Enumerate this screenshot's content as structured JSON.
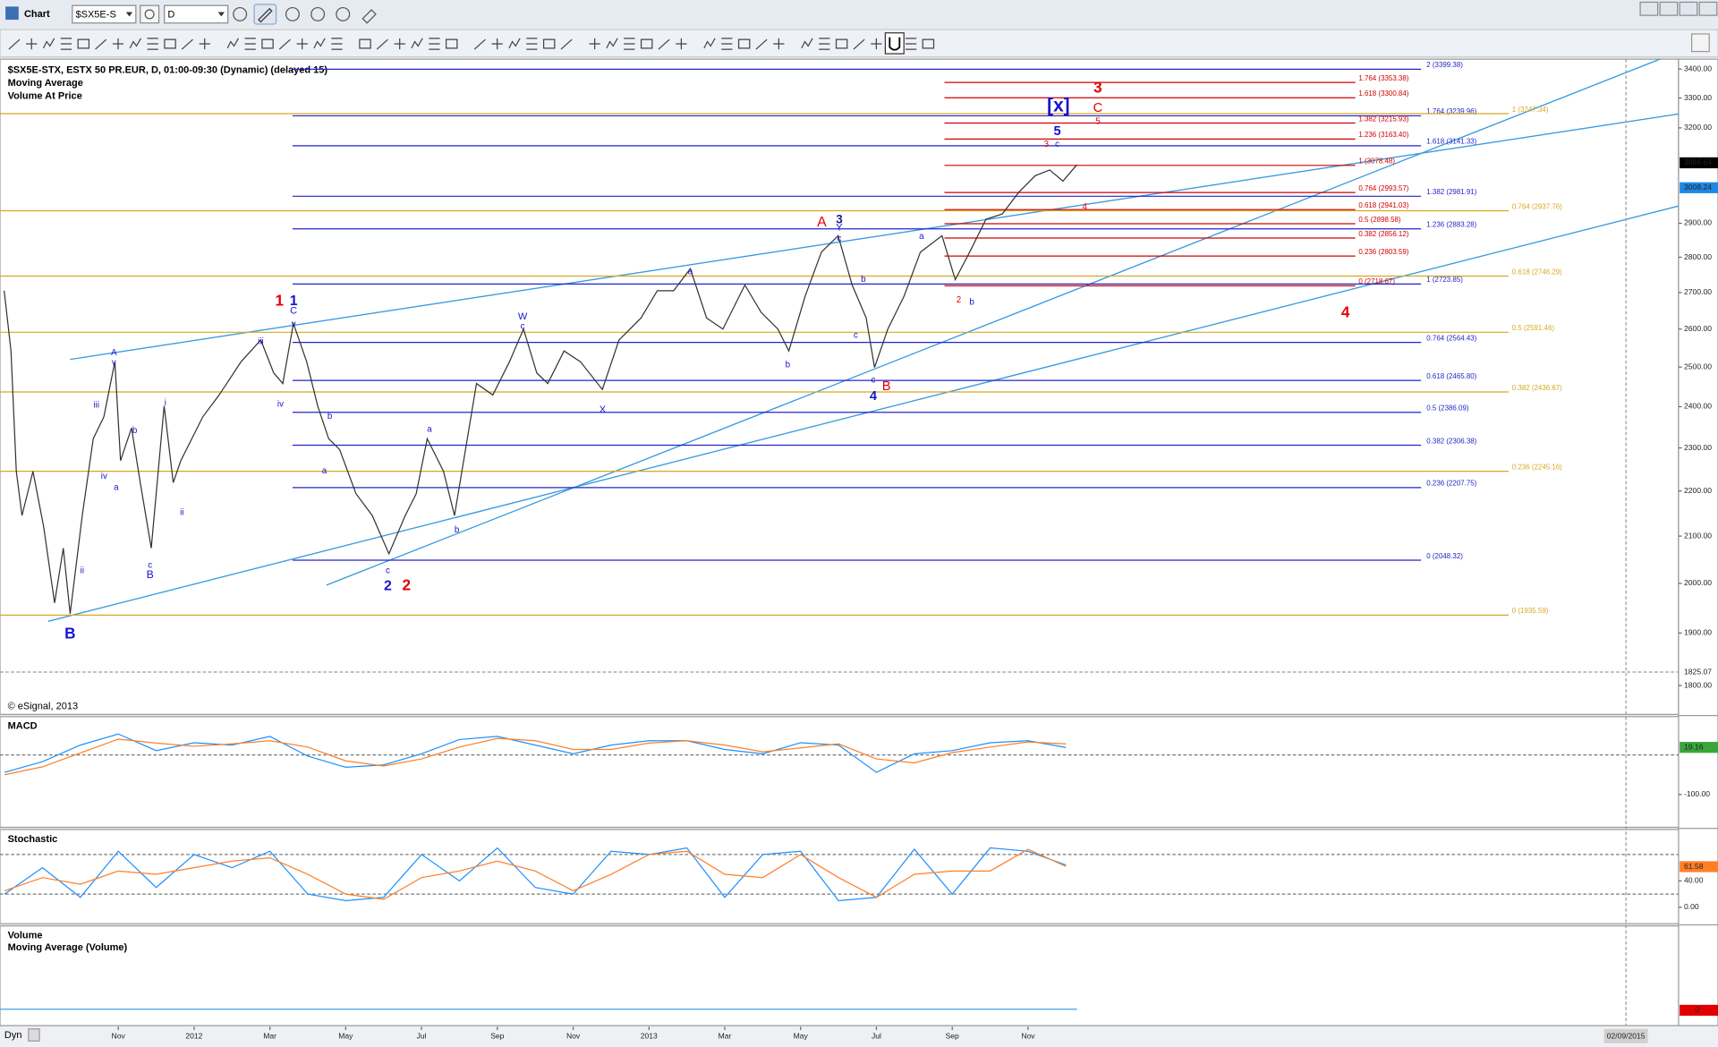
{
  "window": {
    "title": "Chart",
    "symbol": "$SX5E-S",
    "interval": "D",
    "cursor_date": "02/09/2015",
    "status": "Dyn"
  },
  "chart_data": [
    {
      "type": "line",
      "title": "$SX5E-STX, ESTX 50 PR.EUR, D, 01:00-09:30 (Dynamic) (delayed 15)",
      "studies": [
        "Moving Average",
        "Volume At Price"
      ],
      "copyright": "© eSignal, 2013",
      "log": true,
      "color": "#333333",
      "x": [
        -2.01,
        -1.83,
        -1.69,
        -1.54,
        -1.25,
        -0.97,
        -0.68,
        -0.45,
        -0.27,
        0.05,
        0.34,
        0.62,
        0.91,
        1.06,
        1.35,
        1.58,
        1.87,
        2.21,
        2.45,
        2.65,
        2.94,
        3.23,
        3.66,
        4.24,
        4.76,
        5.1,
        5.34,
        5.62,
        5.97,
        6.26,
        6.55,
        6.84,
        7.27,
        7.7,
        8.14,
        8.57,
        8.86,
        9.15,
        9.58,
        9.87,
        10.16,
        10.45,
        10.88,
        11.32,
        11.69,
        12.04,
        12.33,
        12.76,
        13.19,
        13.77,
        14.21,
        14.79,
        15.22,
        15.65,
        16.09,
        16.52,
        16.95,
        17.53,
        17.96,
        18.4,
        18.69,
        19.12,
        19.55,
        19.99,
        20.36,
        20.73,
        20.95,
        21.3,
        21.73,
        22.16,
        22.73,
        23.08,
        23.46,
        23.89,
        24.32,
        24.76,
        25.19,
        25.57,
        25.92,
        26.29
      ],
      "values": [
        2705,
        2542,
        2245,
        2145,
        2245,
        2121,
        1960,
        2074,
        1938,
        2145,
        2322,
        2375,
        2514,
        2270,
        2348,
        2219,
        2074,
        2402,
        2219,
        2270,
        2322,
        2375,
        2429,
        2514,
        2571,
        2485,
        2458,
        2615,
        2514,
        2402,
        2322,
        2296,
        2194,
        2145,
        2062,
        2145,
        2194,
        2322,
        2245,
        2145,
        2296,
        2458,
        2429,
        2514,
        2600,
        2485,
        2458,
        2542,
        2514,
        2443,
        2571,
        2630,
        2705,
        2705,
        2767,
        2630,
        2600,
        2721,
        2645,
        2600,
        2542,
        2690,
        2815,
        2863,
        2721,
        2630,
        2499,
        2600,
        2690,
        2815,
        2863,
        2736,
        2815,
        2912,
        2928,
        2995,
        3046,
        3064,
        3029,
        3081
      ],
      "xlim": [
        -2.12,
        42.16
      ],
      "xticks": [
        {
          "value": 1,
          "label": "Nov"
        },
        {
          "value": 3,
          "label": "2012"
        },
        {
          "value": 5,
          "label": "Mar"
        },
        {
          "value": 7,
          "label": "May"
        },
        {
          "value": 9,
          "label": "Jul"
        },
        {
          "value": 11,
          "label": "Sep"
        },
        {
          "value": 13,
          "label": "Nov"
        },
        {
          "value": 15,
          "label": "2013"
        },
        {
          "value": 17,
          "label": "Mar"
        },
        {
          "value": 19,
          "label": "May"
        },
        {
          "value": 21,
          "label": "Jul"
        },
        {
          "value": 23,
          "label": "Sep"
        },
        {
          "value": 25,
          "label": "Nov"
        }
      ],
      "ylim": [
        1747,
        3435
      ],
      "yticks": [
        {
          "value": 3400,
          "label": "3400.00"
        },
        {
          "value": 3300,
          "label": "3300.00"
        },
        {
          "value": 3200,
          "label": "3200.00"
        },
        {
          "value": 2900,
          "label": "2900.00"
        },
        {
          "value": 2800,
          "label": "2800.00"
        },
        {
          "value": 2700,
          "label": "2700.00"
        },
        {
          "value": 2600,
          "label": "2600.00"
        },
        {
          "value": 2500,
          "label": "2500.00"
        },
        {
          "value": 2400,
          "label": "2400.00"
        },
        {
          "value": 2300,
          "label": "2300.00"
        },
        {
          "value": 2200,
          "label": "2200.00"
        },
        {
          "value": 2100,
          "label": "2100.00"
        },
        {
          "value": 2000,
          "label": "2000.00"
        },
        {
          "value": 1900,
          "label": "1900.00"
        },
        {
          "value": 1800,
          "label": "1800.00"
        }
      ],
      "markers": [
        {
          "value": 3086.64,
          "color": "#000000"
        },
        {
          "value": 3008.24,
          "color": "#1e88e5"
        },
        {
          "value": 1825.07,
          "color": null,
          "crosshair": true
        }
      ],
      "fib_levels": [
        {
          "color": "#2424c8",
          "levels": [
            {
              "label": "2 (3399.38)",
              "value": 3399.38
            },
            {
              "label": "1.764 (3239.96)",
              "value": 3239.96
            },
            {
              "label": "1.618 (3141.33)",
              "value": 3141.33
            },
            {
              "label": "1.382 (2981.91)",
              "value": 2981.91
            },
            {
              "label": "1.236 (2883.28)",
              "value": 2883.28
            },
            {
              "label": "1 (2723.85)",
              "value": 2723.85
            },
            {
              "label": "0.764 (2564.43)",
              "value": 2564.43
            },
            {
              "label": "0.618 (2465.80)",
              "value": 2465.8
            },
            {
              "label": "0.5 (2386.09)",
              "value": 2386.09
            },
            {
              "label": "0.382 (2306.38)",
              "value": 2306.38
            },
            {
              "label": "0.236 (2207.75)",
              "value": 2207.75
            },
            {
              "label": "0 (2048.32)",
              "value": 2048.32
            }
          ]
        },
        {
          "color": "#d00000",
          "levels": [
            {
              "label": "1.764 (3353.38)",
              "value": 3353.38
            },
            {
              "label": "1.618 (3300.84)",
              "value": 3300.84
            },
            {
              "label": "1.382 (3215.93)",
              "value": 3215.93
            },
            {
              "label": "1.236 (3163.40)",
              "value": 3163.4
            },
            {
              "label": "1 (3078.48)",
              "value": 3078.48
            },
            {
              "label": "0.764 (2993.57)",
              "value": 2993.57
            },
            {
              "label": "0.618 (2941.03)",
              "value": 2941.03
            },
            {
              "label": "0.5 (2898.58)",
              "value": 2898.58
            },
            {
              "label": "0.382 (2856.12)",
              "value": 2856.12
            },
            {
              "label": "0.236 (2803.59)",
              "value": 2803.59
            },
            {
              "label": "0 (2718.67)",
              "value": 2718.67
            }
          ]
        },
        {
          "color": "#d8a823",
          "levels": [
            {
              "label": "1 (3247.34)",
              "value": 3247.34
            },
            {
              "label": "0.764 (2937.76)",
              "value": 2937.76
            },
            {
              "label": "0.618 (2746.29)",
              "value": 2746.29
            },
            {
              "label": "0.5 (2591.46)",
              "value": 2591.46
            },
            {
              "label": "0.382 (2436.67)",
              "value": 2436.67
            },
            {
              "label": "0.236 (2245.16)",
              "value": 2245.16
            },
            {
              "label": "0 (1935.59)",
              "value": 1935.59
            }
          ]
        }
      ],
      "wave_labels": [
        "B",
        "1",
        "1",
        "2",
        "2",
        "A",
        "3",
        "4",
        "B",
        "[x]",
        "3",
        "C",
        "5",
        "4",
        "A",
        "v",
        "iii",
        "iv",
        "a",
        "b",
        "c",
        "B",
        "ii",
        "i",
        "ii",
        "iii",
        "iv",
        "C",
        "v",
        "b",
        "a",
        "c",
        "a",
        "b",
        "W",
        "c",
        "X",
        "a",
        "b",
        "Y",
        "c",
        "b",
        "c",
        "c",
        "a",
        "2",
        "b",
        "3",
        "c",
        "5",
        "4"
      ]
    },
    {
      "type": "line",
      "title": "MACD",
      "x": [
        -2,
        -1,
        0,
        1,
        2,
        3,
        4,
        5,
        6,
        7,
        8,
        9,
        10,
        11,
        12,
        13,
        14,
        15,
        16,
        17,
        18,
        19,
        20,
        21,
        22,
        23,
        24,
        25,
        26
      ],
      "series": [
        {
          "color": "#1e90ff",
          "values": [
            -44,
            -17,
            25,
            53,
            11,
            31,
            25,
            47,
            -3,
            -31,
            -25,
            3,
            39,
            47,
            25,
            3,
            25,
            36,
            36,
            14,
            3,
            31,
            25,
            -44,
            3,
            11,
            31,
            36,
            19
          ]
        },
        {
          "color": "#ff7f27",
          "values": [
            -50,
            -30,
            5,
            40,
            30,
            22,
            28,
            36,
            20,
            -15,
            -28,
            -10,
            20,
            42,
            36,
            14,
            14,
            30,
            36,
            25,
            8,
            18,
            28,
            -10,
            -20,
            6,
            20,
            33,
            28
          ]
        }
      ],
      "ylim": [
        -183,
        97
      ],
      "yticks": [
        {
          "value": -100,
          "label": "-100.00"
        }
      ],
      "ref_lines": [
        0
      ],
      "markers": [
        {
          "value": 19.16,
          "color": "#3aa53a"
        }
      ]
    },
    {
      "type": "line",
      "title": "Stochastic",
      "x": [
        -2,
        -1,
        0,
        1,
        2,
        3,
        4,
        5,
        6,
        7,
        8,
        9,
        10,
        11,
        12,
        13,
        14,
        15,
        16,
        17,
        18,
        19,
        20,
        21,
        22,
        23,
        24,
        25,
        26
      ],
      "series": [
        {
          "color": "#1e90ff",
          "values": [
            20,
            60,
            15,
            85,
            30,
            80,
            60,
            85,
            20,
            10,
            15,
            80,
            40,
            90,
            30,
            20,
            85,
            80,
            90,
            15,
            80,
            85,
            10,
            15,
            88,
            20,
            90,
            85,
            64
          ]
        },
        {
          "color": "#ff7f27",
          "values": [
            25,
            45,
            35,
            55,
            50,
            60,
            70,
            75,
            50,
            20,
            12,
            45,
            55,
            70,
            55,
            25,
            50,
            80,
            85,
            50,
            45,
            80,
            45,
            15,
            50,
            55,
            55,
            88,
            62
          ]
        }
      ],
      "ylim": [
        -25,
        118
      ],
      "yticks": [
        {
          "value": 40,
          "label": "40.00"
        },
        {
          "value": 0,
          "label": "0.00"
        }
      ],
      "ref_lines": [
        80,
        20
      ],
      "markers": [
        {
          "value": 61.58,
          "color": "#ff7f27"
        }
      ]
    }
  ],
  "volume_panel": {
    "title": "Volume",
    "study": "Moving Average (Volume)",
    "last_value": 0
  }
}
